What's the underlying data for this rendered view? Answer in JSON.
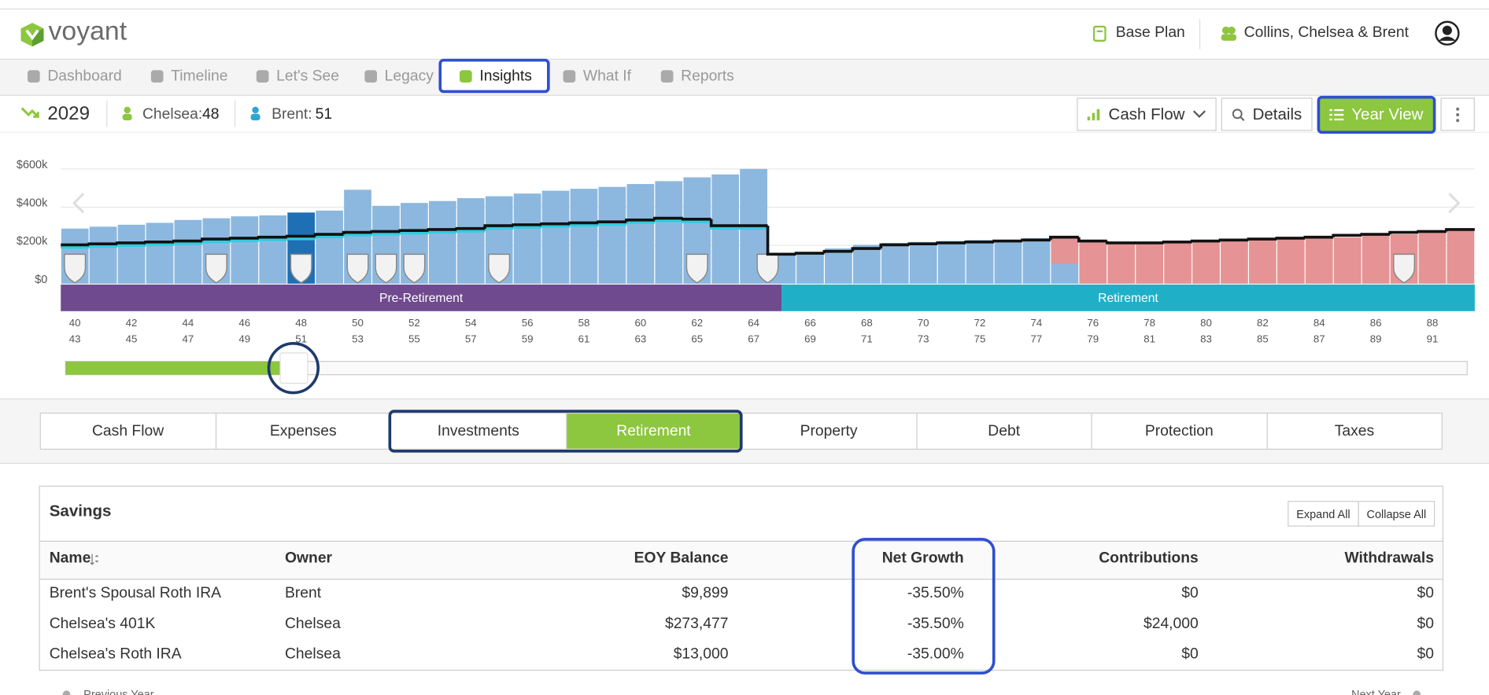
{
  "header": {
    "logo": "voyant",
    "plan": "Base Plan",
    "clients": "Collins, Chelsea & Brent"
  },
  "nav": [
    "Dashboard",
    "Timeline",
    "Let's See",
    "Legacy",
    "Insights",
    "What If",
    "Reports"
  ],
  "year_bar": {
    "year": "2029",
    "person1_label": "Chelsea:",
    "person1_age": "48",
    "person2_label": "Brent:",
    "person2_age": "51",
    "view_select": "Cash Flow",
    "details": "Details",
    "year_view": "Year View"
  },
  "chart_data": {
    "type": "bar",
    "categories": [
      "40",
      null,
      "42",
      null,
      "44",
      null,
      "46",
      null,
      "48",
      null,
      "50",
      null,
      "52",
      null,
      "54",
      null,
      "56",
      null,
      "58",
      null,
      "60",
      null,
      "62",
      null,
      "64",
      null,
      "66",
      null,
      "68",
      null,
      "70",
      null,
      "72",
      null,
      "74",
      null,
      "76",
      null,
      "78",
      null,
      "80",
      null,
      "82",
      null,
      "84",
      null,
      "86",
      null,
      "88",
      null
    ],
    "secondary_categories": [
      "43",
      null,
      "45",
      null,
      "47",
      null,
      "49",
      null,
      "51",
      null,
      "53",
      null,
      "55",
      null,
      "57",
      null,
      "59",
      null,
      "61",
      null,
      "63",
      null,
      "65",
      null,
      "67",
      null,
      "69",
      null,
      "71",
      null,
      "73",
      null,
      "75",
      null,
      "77",
      null,
      "79",
      null,
      "81",
      null,
      "83",
      null,
      "85",
      null,
      "87",
      null,
      "89",
      null,
      "91",
      null
    ],
    "ylim": [
      0,
      640000
    ],
    "yticks": [
      {
        "value": 0,
        "label": "$0"
      },
      {
        "value": 200000,
        "label": "$200k"
      },
      {
        "value": 400000,
        "label": "$400k"
      },
      {
        "value": 600000,
        "label": "$600k"
      }
    ],
    "grid": true,
    "highlight_color": "#1f6fb5",
    "series": [
      {
        "type": "bar",
        "color": "#8cb8df",
        "values": [
          288000,
          298000,
          308000,
          318000,
          333000,
          342000,
          352000,
          357000,
          372000,
          382000,
          491000,
          407000,
          422000,
          432000,
          447000,
          457000,
          471000,
          486000,
          496000,
          506000,
          521000,
          536000,
          556000,
          571000,
          600000,
          154000,
          164000,
          184000,
          203000,
          213000,
          218000,
          223000,
          228000,
          228000,
          238000,
          104000,
          null,
          null,
          null,
          null,
          null,
          null,
          null,
          null,
          null,
          null,
          null,
          null,
          null,
          null
        ]
      },
      {
        "type": "bar",
        "color": "#e59394",
        "values": [
          null,
          null,
          null,
          null,
          null,
          null,
          null,
          null,
          null,
          null,
          null,
          null,
          null,
          null,
          null,
          null,
          null,
          null,
          null,
          null,
          null,
          null,
          null,
          null,
          null,
          null,
          null,
          null,
          null,
          null,
          null,
          null,
          null,
          null,
          null,
          134000,
          218000,
          208000,
          208000,
          213000,
          218000,
          223000,
          228000,
          233000,
          238000,
          243000,
          253000,
          258000,
          268000,
          278000
        ]
      },
      {
        "type": "line",
        "color": "#2ecde0",
        "values": [
          190000,
          195000,
          200000,
          205000,
          210000,
          220000,
          225000,
          230000,
          235000,
          245000,
          255000,
          260000,
          265000,
          270000,
          275000,
          290000,
          295000,
          300000,
          305000,
          310000,
          320000,
          329000,
          324000,
          290000,
          290000,
          null,
          null,
          null,
          null,
          null,
          null,
          null,
          null,
          null,
          null,
          null,
          null,
          null,
          null,
          null,
          null,
          null,
          null,
          null,
          null,
          null,
          null,
          null,
          null,
          null
        ]
      },
      {
        "type": "line",
        "color": "#111111",
        "values": [
          203000,
          208000,
          213000,
          218000,
          223000,
          233000,
          238000,
          243000,
          248000,
          258000,
          268000,
          273000,
          278000,
          283000,
          288000,
          303000,
          308000,
          313000,
          318000,
          323000,
          333000,
          342000,
          337000,
          303000,
          303000,
          154000,
          159000,
          169000,
          184000,
          203000,
          208000,
          213000,
          218000,
          223000,
          228000,
          243000,
          223000,
          213000,
          213000,
          218000,
          223000,
          228000,
          233000,
          238000,
          243000,
          253000,
          258000,
          268000,
          273000,
          283000
        ]
      }
    ],
    "phases": [
      {
        "label": "Pre-Retirement",
        "color": "#6f4a8e"
      },
      {
        "label": "Retirement",
        "color": "#1fb0c8"
      }
    ]
  },
  "tabs": [
    "Cash Flow",
    "Expenses",
    "Investments",
    "Retirement",
    "Property",
    "Debt",
    "Protection",
    "Taxes"
  ],
  "savings": {
    "title": "Savings",
    "expand": "Expand All",
    "collapse": "Collapse All",
    "columns": [
      "Name",
      "Owner",
      "EOY Balance",
      "Net Growth",
      "Contributions",
      "Withdrawals"
    ],
    "rows": [
      [
        "Brent's Spousal Roth IRA",
        "Brent",
        "$9,899",
        "-35.50%",
        "$0",
        "$0"
      ],
      [
        "Chelsea's 401K",
        "Chelsea",
        "$273,477",
        "-35.50%",
        "$24,000",
        "$0"
      ],
      [
        "Chelsea's Roth IRA",
        "Chelsea",
        "$13,000",
        "-35.00%",
        "$0",
        "$0"
      ]
    ]
  },
  "footer": {
    "prev": "Previous Year",
    "next": "Next Year"
  }
}
